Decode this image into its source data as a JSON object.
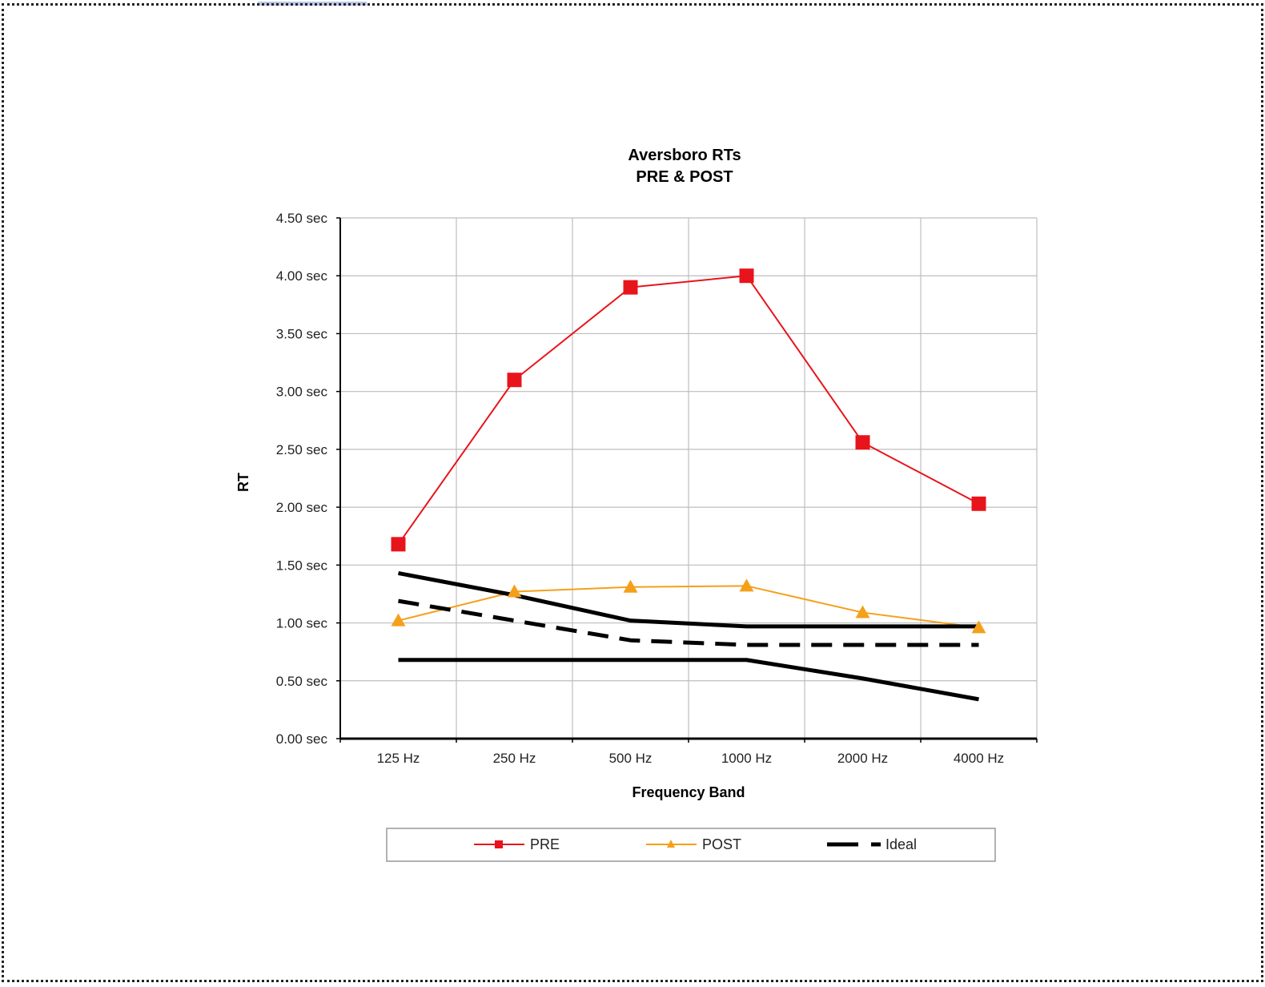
{
  "chart_data": {
    "type": "line",
    "title": "Aversboro RTs",
    "subtitle": "PRE & POST",
    "xlabel": "Frequency Band",
    "ylabel": "RT",
    "categories": [
      "125 Hz",
      "250 Hz",
      "500 Hz",
      "1000 Hz",
      "2000 Hz",
      "4000 Hz"
    ],
    "ylim": [
      0,
      4.5
    ],
    "yticks": [
      {
        "value": 0,
        "label": "0.00 sec"
      },
      {
        "value": 0.5,
        "label": "0.50 sec"
      },
      {
        "value": 1.0,
        "label": "1.00 sec"
      },
      {
        "value": 1.5,
        "label": "1.50 sec"
      },
      {
        "value": 2.0,
        "label": "2.00 sec"
      },
      {
        "value": 2.5,
        "label": "2.50 sec"
      },
      {
        "value": 3.0,
        "label": "3.00 sec"
      },
      {
        "value": 3.5,
        "label": "3.50 sec"
      },
      {
        "value": 4.0,
        "label": "4.00 sec"
      },
      {
        "value": 4.5,
        "label": "4.50 sec"
      }
    ],
    "grid": true,
    "legend_position": "bottom",
    "series": [
      {
        "name": "PRE",
        "values": [
          1.68,
          3.1,
          3.9,
          4.0,
          2.56,
          2.03
        ],
        "color": "#e8141c",
        "marker": "square",
        "style": "solid"
      },
      {
        "name": "POST",
        "values": [
          1.02,
          1.27,
          1.31,
          1.32,
          1.09,
          0.96
        ],
        "color": "#f5a01a",
        "marker": "triangle",
        "style": "solid"
      },
      {
        "name": "Ideal",
        "values": [
          1.43,
          1.24,
          1.02,
          0.97,
          0.97,
          0.97
        ],
        "color": "#000000",
        "marker": "none",
        "style": "solid"
      },
      {
        "values": [
          1.19,
          1.02,
          0.85,
          0.81,
          0.81,
          0.81
        ],
        "color": "#000000",
        "marker": "none",
        "style": "dashed"
      },
      {
        "values": [
          0.68,
          0.68,
          0.68,
          0.68,
          0.52,
          0.34
        ],
        "color": "#000000",
        "marker": "none",
        "style": "solid"
      }
    ]
  }
}
